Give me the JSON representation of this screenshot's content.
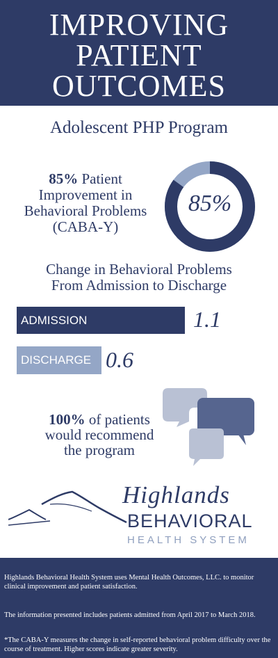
{
  "header": {
    "title_lines": [
      "IMPROVING",
      "PATIENT",
      "OUTCOMES"
    ]
  },
  "subtitle": "Adolescent PHP Program",
  "improvement": {
    "percent_bold": "85%",
    "text_lines": [
      "Patient",
      "Improvement in",
      "Behavioral Problems",
      "(CABA-Y)"
    ],
    "donut_label": "85%",
    "donut_fraction": 0.85
  },
  "change": {
    "title_lines": [
      "Change in Behavioral Problems",
      "From Admission to Discharge"
    ],
    "admission": {
      "label": "ADMISSION",
      "value": "1.1"
    },
    "discharge": {
      "label": "DISCHARGE",
      "value": "0.6"
    }
  },
  "recommend": {
    "percent_bold": "100%",
    "text_lines": [
      "of patients",
      "would recommend",
      "the program"
    ]
  },
  "logo": {
    "line1": "Highlands",
    "line2": "BEHAVIORAL",
    "line3": "HEALTH SYSTEM"
  },
  "footer": {
    "p1": "Highlands Behavioral Health System uses Mental Health Outcomes, LLC. to monitor clinical improvement and patient satisfaction.",
    "p2": "The information presented includes patients admitted from April 2017 to March 2018.",
    "p3": "*The CABA-Y measures the change in self-reported behavioral problem difficulty over the course of treatment. Higher scores indicate greater severity."
  },
  "colors": {
    "navy": "#2e3b66",
    "light_blue": "#94a6c6",
    "grey_bubble": "#b9c1d4",
    "dark_bubble": "#56658f"
  },
  "icons": [
    "mountain-logo-icon",
    "speech-bubbles-icon"
  ]
}
